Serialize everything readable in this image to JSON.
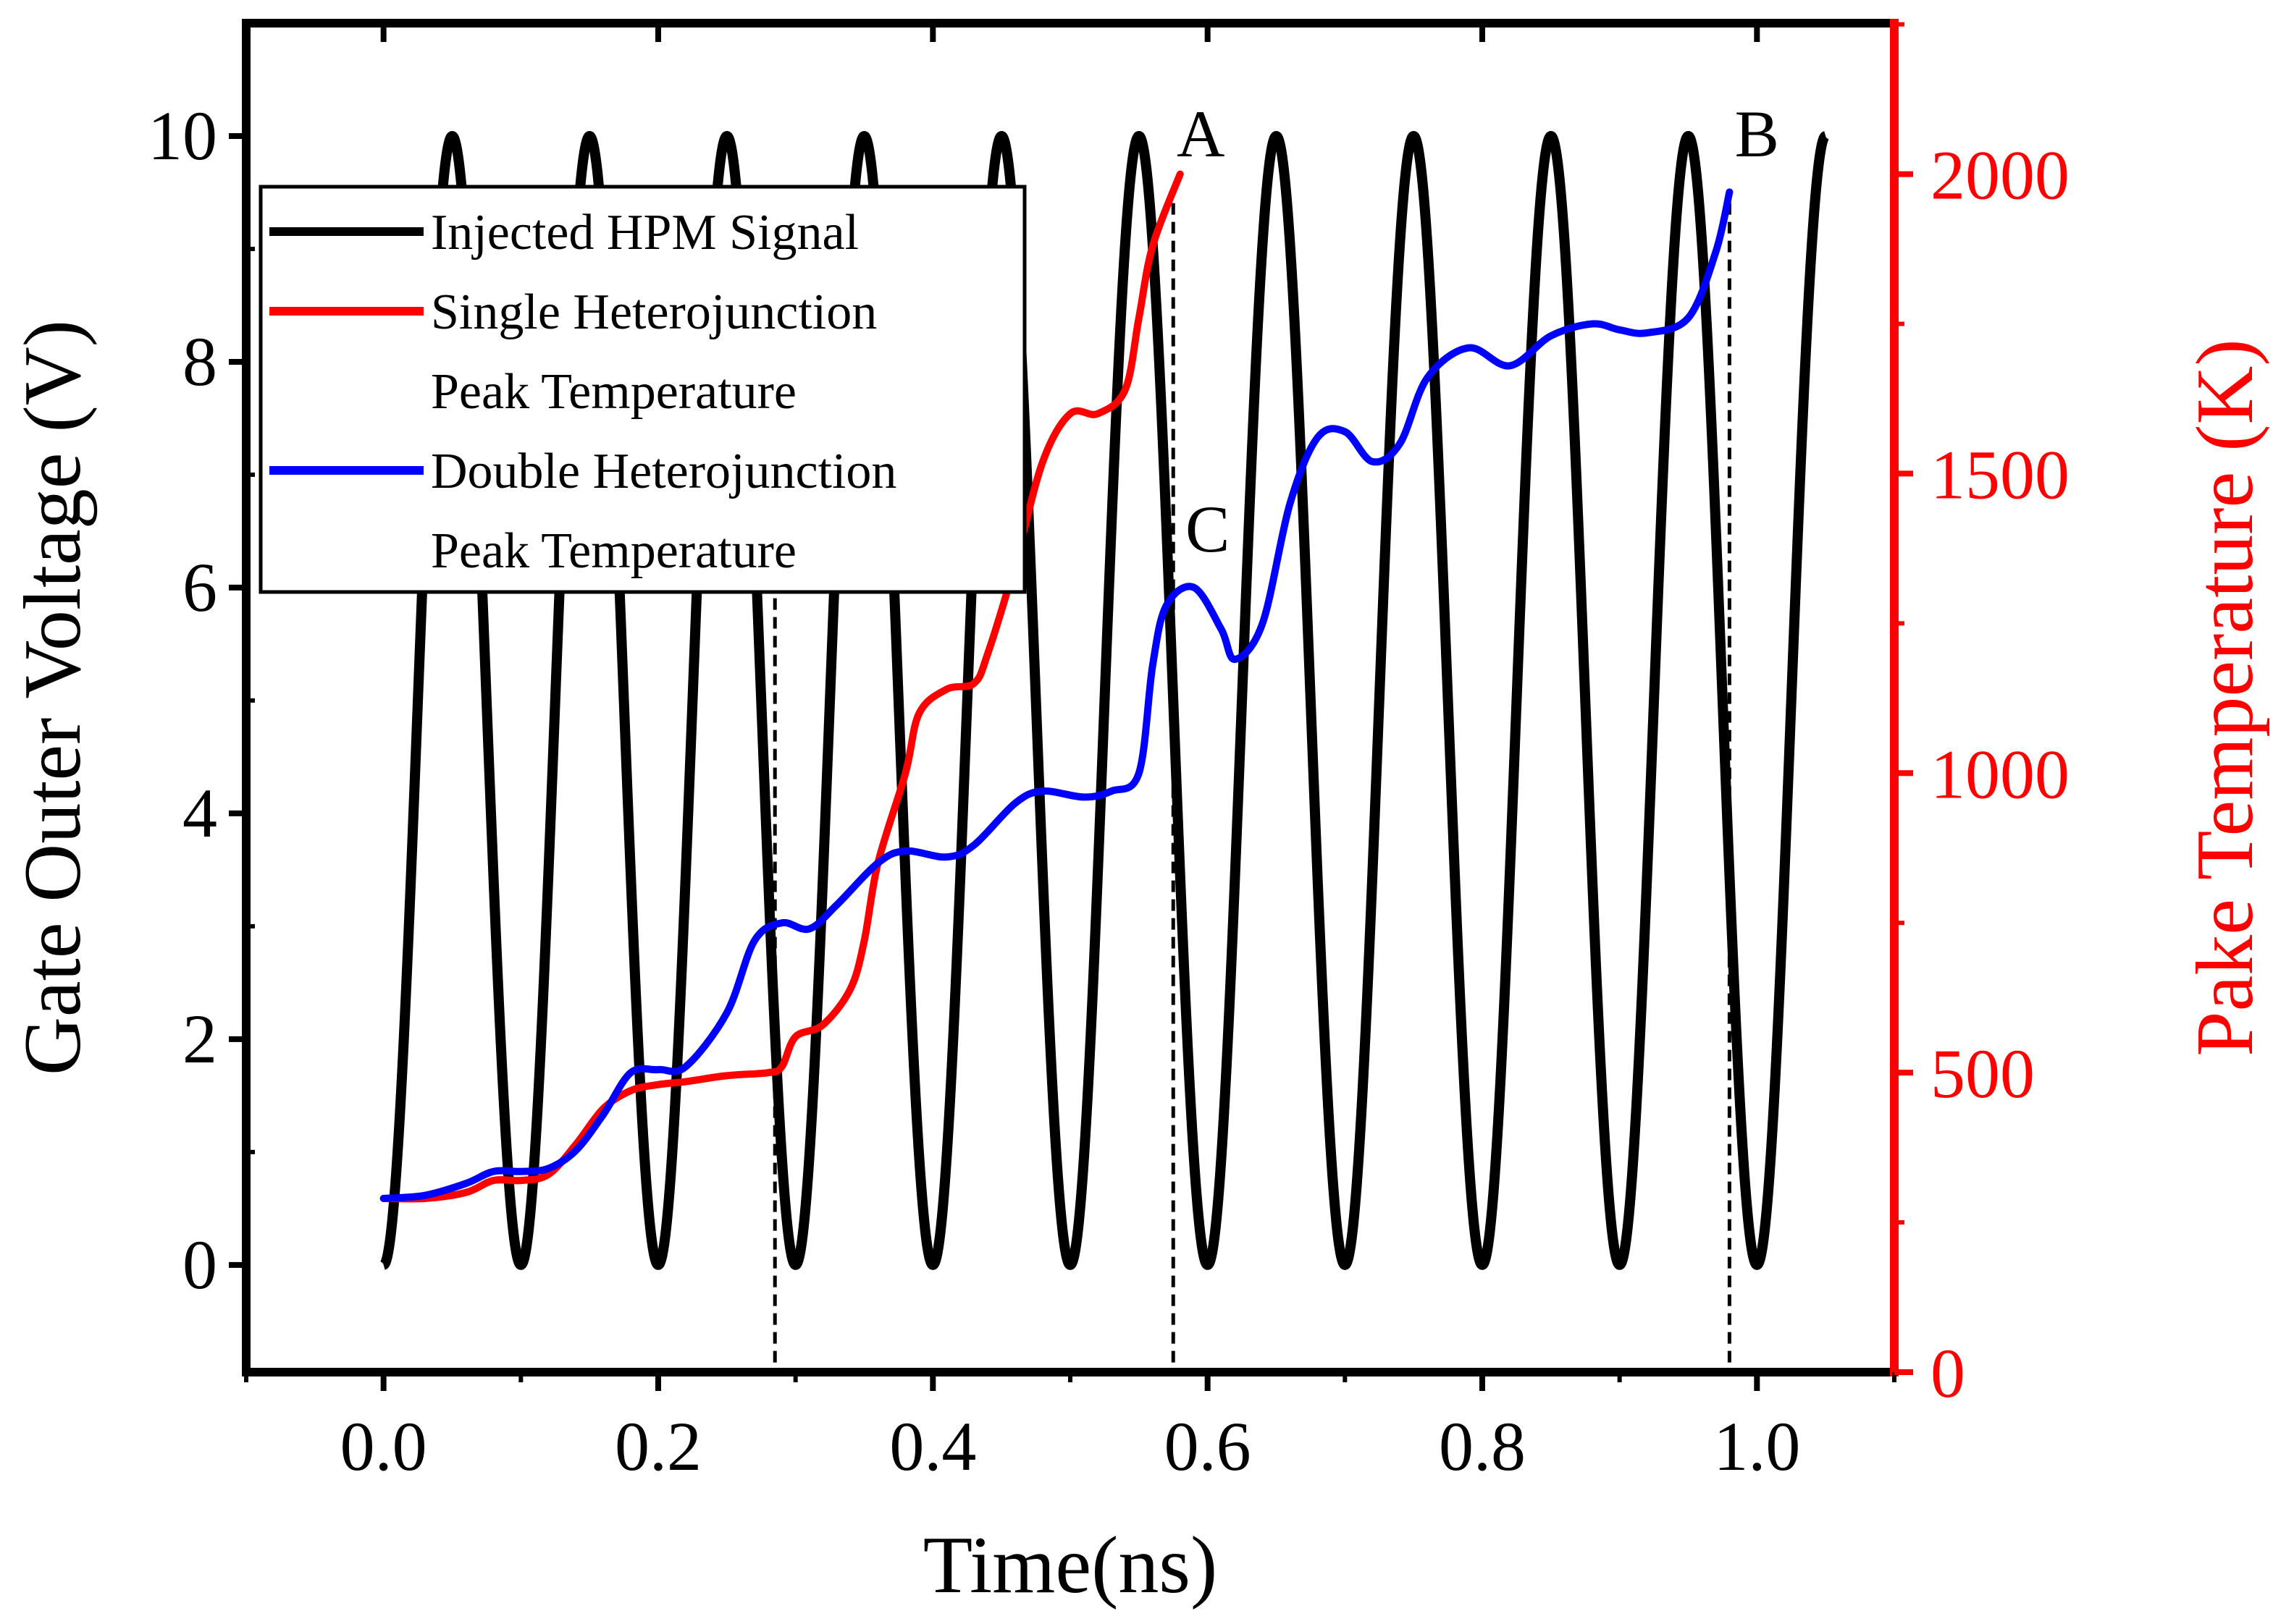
{
  "chart_data": {
    "type": "line",
    "x_axis": {
      "label": "Time(ns)",
      "range": [
        -0.1,
        1.1
      ],
      "ticks": [
        0.0,
        0.2,
        0.4,
        0.6,
        0.8,
        1.0
      ],
      "tick_labels": [
        "0.0",
        "0.2",
        "0.4",
        "0.6",
        "0.8",
        "1.0"
      ]
    },
    "y_left": {
      "label": "Gate Outer Voltage (V)",
      "range": [
        -0.95,
        11.0
      ],
      "ticks": [
        0,
        2,
        4,
        6,
        8,
        10
      ],
      "tick_labels": [
        "0",
        "2",
        "4",
        "6",
        "8",
        "10"
      ],
      "color": "#000000"
    },
    "y_right": {
      "label": "Pake Temperature (K)",
      "range": [
        0,
        2252
      ],
      "ticks": [
        0,
        500,
        1000,
        1500,
        2000
      ],
      "tick_labels": [
        "0",
        "500",
        "1000",
        "1500",
        "2000"
      ],
      "color": "#ff0000"
    },
    "series": [
      {
        "name": "Injected HPM Signal",
        "axis": "left",
        "color": "#000000",
        "function": "5*(1-cos(2*pi*x/period))",
        "amplitude_peak": 10,
        "period_ns": 0.1,
        "x_start": 0.0,
        "x_end": 1.05
      },
      {
        "name": "Single Heterojunction Peak Temperature",
        "axis": "right",
        "color": "#ff0000",
        "points": [
          [
            0.0,
            290
          ],
          [
            0.03,
            290
          ],
          [
            0.06,
            300
          ],
          [
            0.08,
            320
          ],
          [
            0.1,
            320
          ],
          [
            0.12,
            330
          ],
          [
            0.14,
            380
          ],
          [
            0.16,
            440
          ],
          [
            0.18,
            470
          ],
          [
            0.2,
            480
          ],
          [
            0.22,
            485
          ],
          [
            0.25,
            495
          ],
          [
            0.28,
            500
          ],
          [
            0.29,
            510
          ],
          [
            0.3,
            560
          ],
          [
            0.32,
            580
          ],
          [
            0.34,
            640
          ],
          [
            0.35,
            720
          ],
          [
            0.36,
            850
          ],
          [
            0.38,
            1000
          ],
          [
            0.39,
            1100
          ],
          [
            0.41,
            1140
          ],
          [
            0.43,
            1150
          ],
          [
            0.44,
            1200
          ],
          [
            0.46,
            1350
          ],
          [
            0.48,
            1520
          ],
          [
            0.5,
            1600
          ],
          [
            0.52,
            1600
          ],
          [
            0.54,
            1640
          ],
          [
            0.55,
            1760
          ],
          [
            0.56,
            1880
          ],
          [
            0.58,
            2000
          ]
        ]
      },
      {
        "name": "Double Heterojunction Peak Temperature",
        "axis": "right",
        "color": "#0000ff",
        "points": [
          [
            0.0,
            290
          ],
          [
            0.03,
            295
          ],
          [
            0.06,
            315
          ],
          [
            0.08,
            335
          ],
          [
            0.1,
            335
          ],
          [
            0.12,
            340
          ],
          [
            0.14,
            370
          ],
          [
            0.16,
            430
          ],
          [
            0.18,
            500
          ],
          [
            0.2,
            505
          ],
          [
            0.22,
            510
          ],
          [
            0.25,
            600
          ],
          [
            0.27,
            720
          ],
          [
            0.29,
            750
          ],
          [
            0.31,
            740
          ],
          [
            0.33,
            780
          ],
          [
            0.36,
            850
          ],
          [
            0.38,
            870
          ],
          [
            0.41,
            860
          ],
          [
            0.43,
            880
          ],
          [
            0.46,
            950
          ],
          [
            0.48,
            970
          ],
          [
            0.51,
            960
          ],
          [
            0.53,
            970
          ],
          [
            0.55,
            1000
          ],
          [
            0.56,
            1180
          ],
          [
            0.57,
            1280
          ],
          [
            0.59,
            1310
          ],
          [
            0.61,
            1240
          ],
          [
            0.62,
            1190
          ],
          [
            0.64,
            1250
          ],
          [
            0.66,
            1450
          ],
          [
            0.68,
            1560
          ],
          [
            0.7,
            1570
          ],
          [
            0.72,
            1520
          ],
          [
            0.74,
            1550
          ],
          [
            0.76,
            1660
          ],
          [
            0.79,
            1710
          ],
          [
            0.82,
            1680
          ],
          [
            0.85,
            1730
          ],
          [
            0.88,
            1750
          ],
          [
            0.9,
            1740
          ],
          [
            0.92,
            1735
          ],
          [
            0.95,
            1760
          ],
          [
            0.97,
            1870
          ],
          [
            0.98,
            1970
          ]
        ]
      }
    ],
    "reference_lines": [
      {
        "x": 0.285,
        "label": ""
      },
      {
        "x": 0.575,
        "label": ""
      },
      {
        "x": 0.98,
        "label": ""
      }
    ],
    "annotations": [
      {
        "text": "A",
        "x": 0.595,
        "y_right": 2030
      },
      {
        "text": "B",
        "x": 1.0,
        "y_right": 2030
      },
      {
        "text": "C",
        "x": 0.6,
        "y_right": 1370
      }
    ],
    "legend": {
      "position": "top-left",
      "entries": [
        {
          "color": "#000000",
          "lines": [
            "Injected HPM Signal"
          ]
        },
        {
          "color": "#ff0000",
          "lines": [
            "Single Heterojunction",
            "Peak Temperature"
          ]
        },
        {
          "color": "#0000ff",
          "lines": [
            "Double Heterojunction",
            "Peak Temperature"
          ]
        }
      ]
    }
  }
}
